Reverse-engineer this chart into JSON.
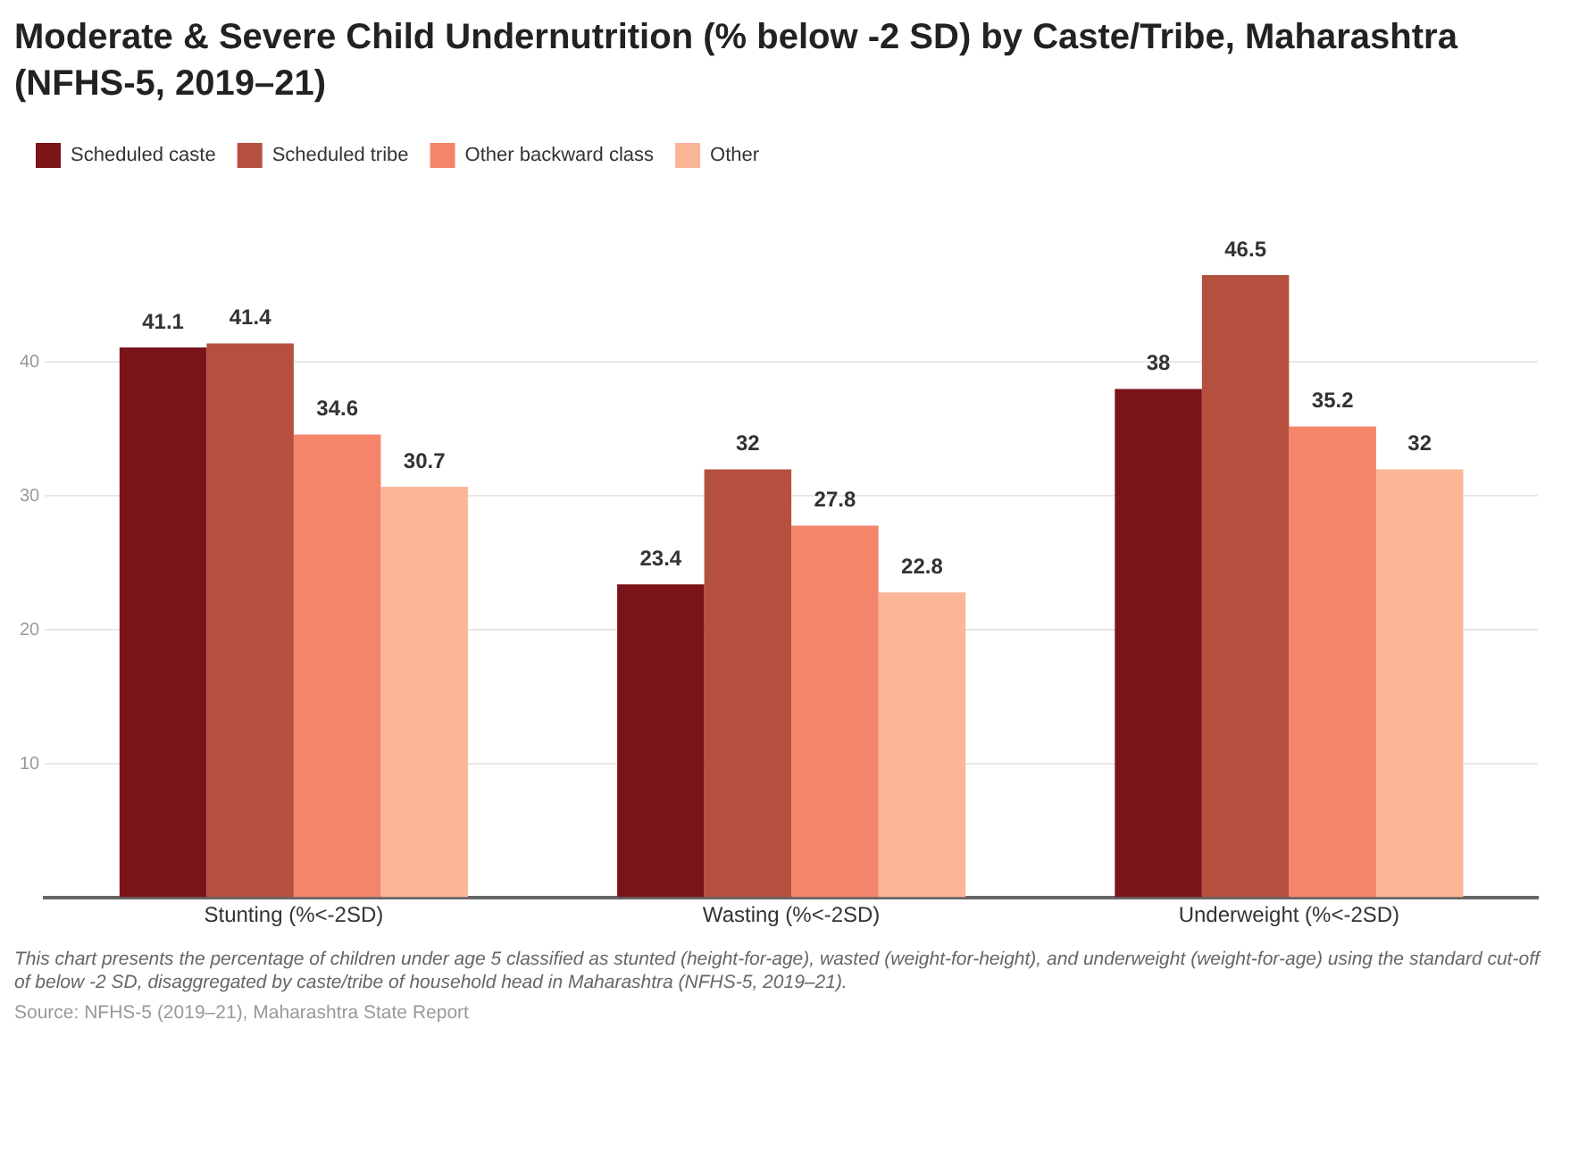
{
  "chart_data": {
    "type": "bar",
    "title": "Moderate & Severe Child Undernutrition (% below -2 SD) by Caste/Tribe, Maharashtra (NFHS-5, 2019–21)",
    "categories": [
      "Stunting (%<-2SD)",
      "Wasting (%<-2SD)",
      "Underweight (%<-2SD)"
    ],
    "series": [
      {
        "name": "Scheduled caste",
        "color": "#7b1419",
        "values": [
          41.1,
          23.4,
          38
        ]
      },
      {
        "name": "Scheduled tribe",
        "color": "#b5503f",
        "values": [
          41.4,
          32,
          46.5
        ]
      },
      {
        "name": "Other backward class",
        "color": "#f4846a",
        "values": [
          34.6,
          27.8,
          35.2
        ]
      },
      {
        "name": "Other",
        "color": "#fbb597",
        "values": [
          30.7,
          22.8,
          32
        ]
      }
    ],
    "ylim": [
      0,
      46.5
    ],
    "yticks": [
      {
        "value": 0,
        "label": null
      },
      10,
      20,
      30,
      40
    ],
    "grid": "y",
    "legend": "top left",
    "data_labels": true,
    "annotations": [
      "This chart presents the percentage of children under age 5 classified as stunted (height-for-age), wasted (weight-for-height), and underweight (weight-for-age) using the standard cut-off of below -2 SD, disaggregated by caste/tribe of household head in Maharashtra (NFHS-5, 2019–21).",
      "Source: NFHS-5 (2019–21), Maharashtra State Report"
    ]
  }
}
